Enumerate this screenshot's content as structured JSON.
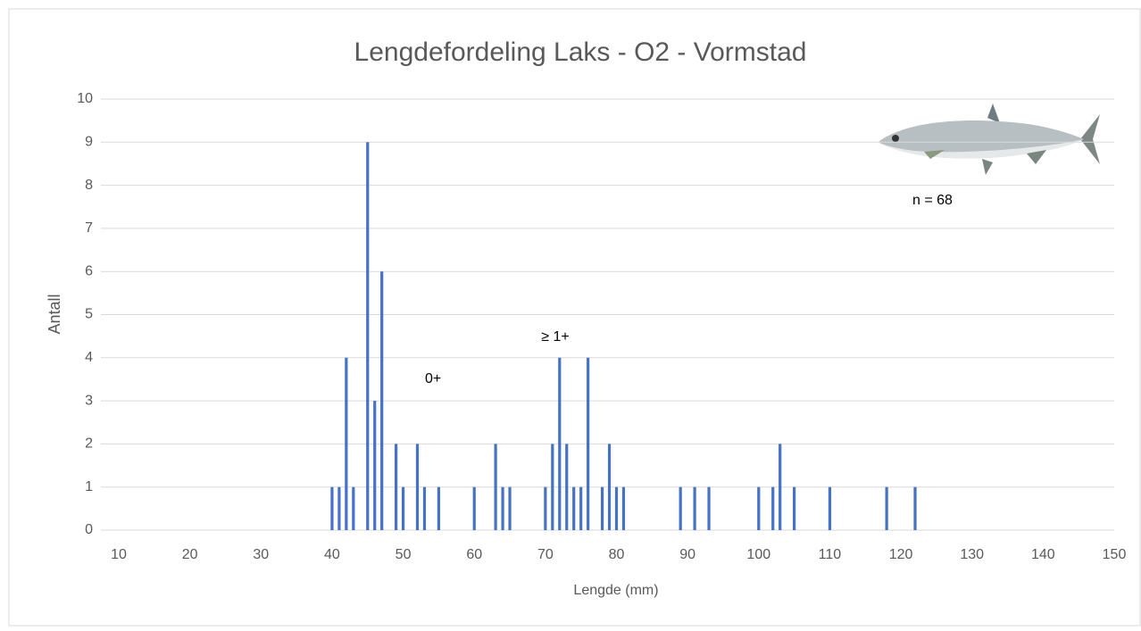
{
  "chart_data": {
    "type": "bar",
    "title": "Lengdefordeling Laks - O2 - Vormstad",
    "x": [
      40,
      41,
      42,
      43,
      45,
      46,
      47,
      49,
      50,
      52,
      53,
      55,
      60,
      63,
      64,
      65,
      70,
      71,
      72,
      73,
      74,
      75,
      76,
      78,
      79,
      80,
      81,
      89,
      91,
      93,
      100,
      102,
      103,
      105,
      110,
      118,
      122
    ],
    "values": [
      1,
      1,
      4,
      1,
      9,
      3,
      6,
      2,
      1,
      2,
      1,
      1,
      1,
      2,
      1,
      1,
      1,
      2,
      4,
      2,
      1,
      1,
      4,
      1,
      2,
      1,
      1,
      1,
      1,
      1,
      1,
      1,
      2,
      1,
      1,
      1,
      1
    ],
    "color": "#4472c4",
    "xlabel": "Lengde (mm)",
    "ylabel": "Antall",
    "xlim": [
      10,
      150
    ],
    "xticks": [
      10,
      20,
      30,
      40,
      50,
      60,
      70,
      80,
      90,
      100,
      110,
      120,
      130,
      140,
      150
    ],
    "ylim": [
      0,
      10
    ],
    "yticks": [
      0,
      1,
      2,
      3,
      4,
      5,
      6,
      7,
      8,
      9,
      10
    ],
    "grid": true,
    "annotations": [
      "0+",
      "≥ 1+",
      "n = 68"
    ]
  }
}
